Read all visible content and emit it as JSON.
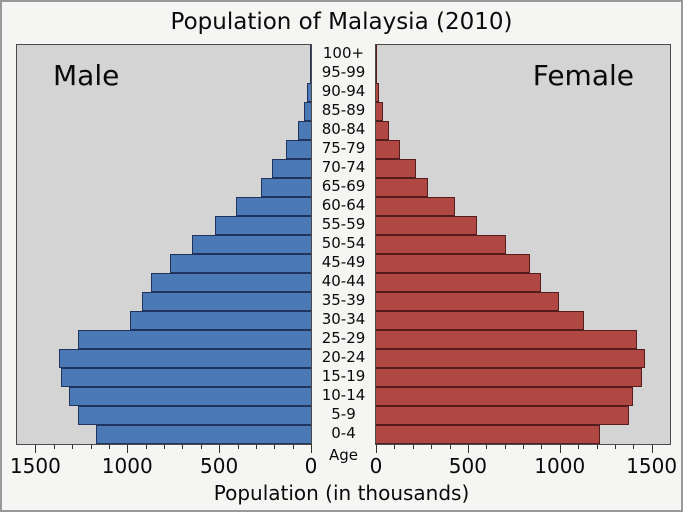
{
  "title": "Population of Malaysia (2010)",
  "panel_labels": {
    "male": "Male",
    "female": "Female"
  },
  "axis": {
    "xlabel": "Population (in thousands)",
    "age_axis_label": "Age",
    "male_tick_labels": [
      1500,
      1000,
      500,
      0
    ],
    "female_tick_labels": [
      0,
      500,
      1000,
      1500
    ],
    "major_tick_step": 500,
    "minor_tick_step": 100
  },
  "colors": {
    "male_bar": "#4a79b5",
    "male_bar_border": "#20335c",
    "female_bar": "#b04743",
    "female_bar_border": "#521d1c",
    "panel_background": "#d4d4d4",
    "figure_background": "#f5f5f3"
  },
  "chart_data": {
    "type": "bar",
    "variant": "population-pyramid",
    "title": "Population of Malaysia (2010)",
    "xlabel": "Population (in thousands)",
    "ylabel": "Age",
    "units": "thousands",
    "xlim": [
      0,
      1600
    ],
    "grid": false,
    "categories_top_to_bottom": [
      "100+",
      "95-99",
      "90-94",
      "85-89",
      "80-84",
      "75-79",
      "70-74",
      "65-69",
      "60-64",
      "55-59",
      "50-54",
      "45-49",
      "40-44",
      "35-39",
      "30-34",
      "25-29",
      "20-24",
      "15-19",
      "10-14",
      "5-9",
      "0-4"
    ],
    "series": [
      {
        "name": "Male",
        "side": "left",
        "color": "#4a79b5",
        "values": [
          3,
          8,
          20,
          40,
          70,
          135,
          210,
          270,
          410,
          520,
          650,
          765,
          870,
          920,
          985,
          1270,
          1370,
          1360,
          1315,
          1270,
          1170
        ]
      },
      {
        "name": "Female",
        "side": "right",
        "color": "#b04743",
        "values": [
          3,
          8,
          18,
          38,
          70,
          130,
          220,
          285,
          430,
          550,
          710,
          840,
          900,
          995,
          1130,
          1420,
          1465,
          1450,
          1400,
          1375,
          1220
        ]
      }
    ]
  }
}
